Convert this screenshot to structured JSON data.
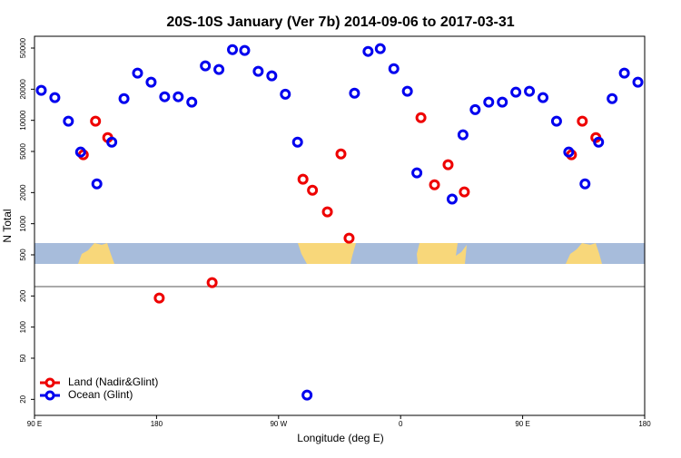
{
  "chart_data": {
    "type": "scatter",
    "title": "20S-10S January (Ver 7b)   2014-09-06 to 2017-03-31",
    "x_label": "Longitude (deg E)",
    "y_label": "N Total",
    "log_y": true,
    "legend": "lower left",
    "xlim": [
      90,
      540
    ],
    "ylim": [
      14,
      65000
    ],
    "xticks": [
      {
        "value": 90,
        "label": "90 E"
      },
      180,
      {
        "value": 270,
        "label": "90 W"
      },
      {
        "value": 360,
        "label": "0"
      },
      {
        "value": 450,
        "label": "90 E"
      },
      {
        "value": 540,
        "label": "180"
      }
    ],
    "yticks": [
      20,
      50,
      100,
      200,
      500,
      1000,
      2000,
      5000,
      10000,
      20000,
      50000
    ],
    "series": [
      {
        "name": "Land (Nadir&Glint)",
        "color": "#ee0000",
        "x": [
          126,
          135,
          144,
          182,
          221,
          288,
          295,
          306,
          316,
          322,
          375,
          385,
          395,
          407,
          486,
          494,
          504
        ],
        "values": [
          4640,
          9800,
          6810,
          191,
          269,
          2690,
          2110,
          1300,
          4730,
          724,
          10600,
          2380,
          3720,
          2030,
          4640,
          9800,
          6810
        ]
      },
      {
        "name": "Ocean (Glint)",
        "color": "#0000ee",
        "x": [
          95,
          105,
          115,
          124,
          136,
          147,
          156,
          166,
          176,
          186,
          196,
          206,
          216,
          226,
          236,
          245,
          255,
          265,
          275,
          284,
          291,
          326,
          336,
          345,
          355,
          365,
          372,
          398,
          406,
          415,
          425,
          435,
          445,
          455,
          465,
          475,
          484,
          496,
          506,
          516,
          525,
          535
        ],
        "values": [
          19500,
          16600,
          9800,
          4930,
          2430,
          6150,
          16200,
          28600,
          23400,
          16900,
          16900,
          15000,
          33600,
          31000,
          48300,
          47400,
          29800,
          26900,
          17900,
          6150,
          22,
          18300,
          46400,
          49300,
          31600,
          19100,
          3100,
          1730,
          7240,
          12700,
          15000,
          15000,
          18700,
          19100,
          16600,
          9800,
          4930,
          2430,
          6150,
          16200,
          28600,
          23400
        ]
      }
    ]
  }
}
